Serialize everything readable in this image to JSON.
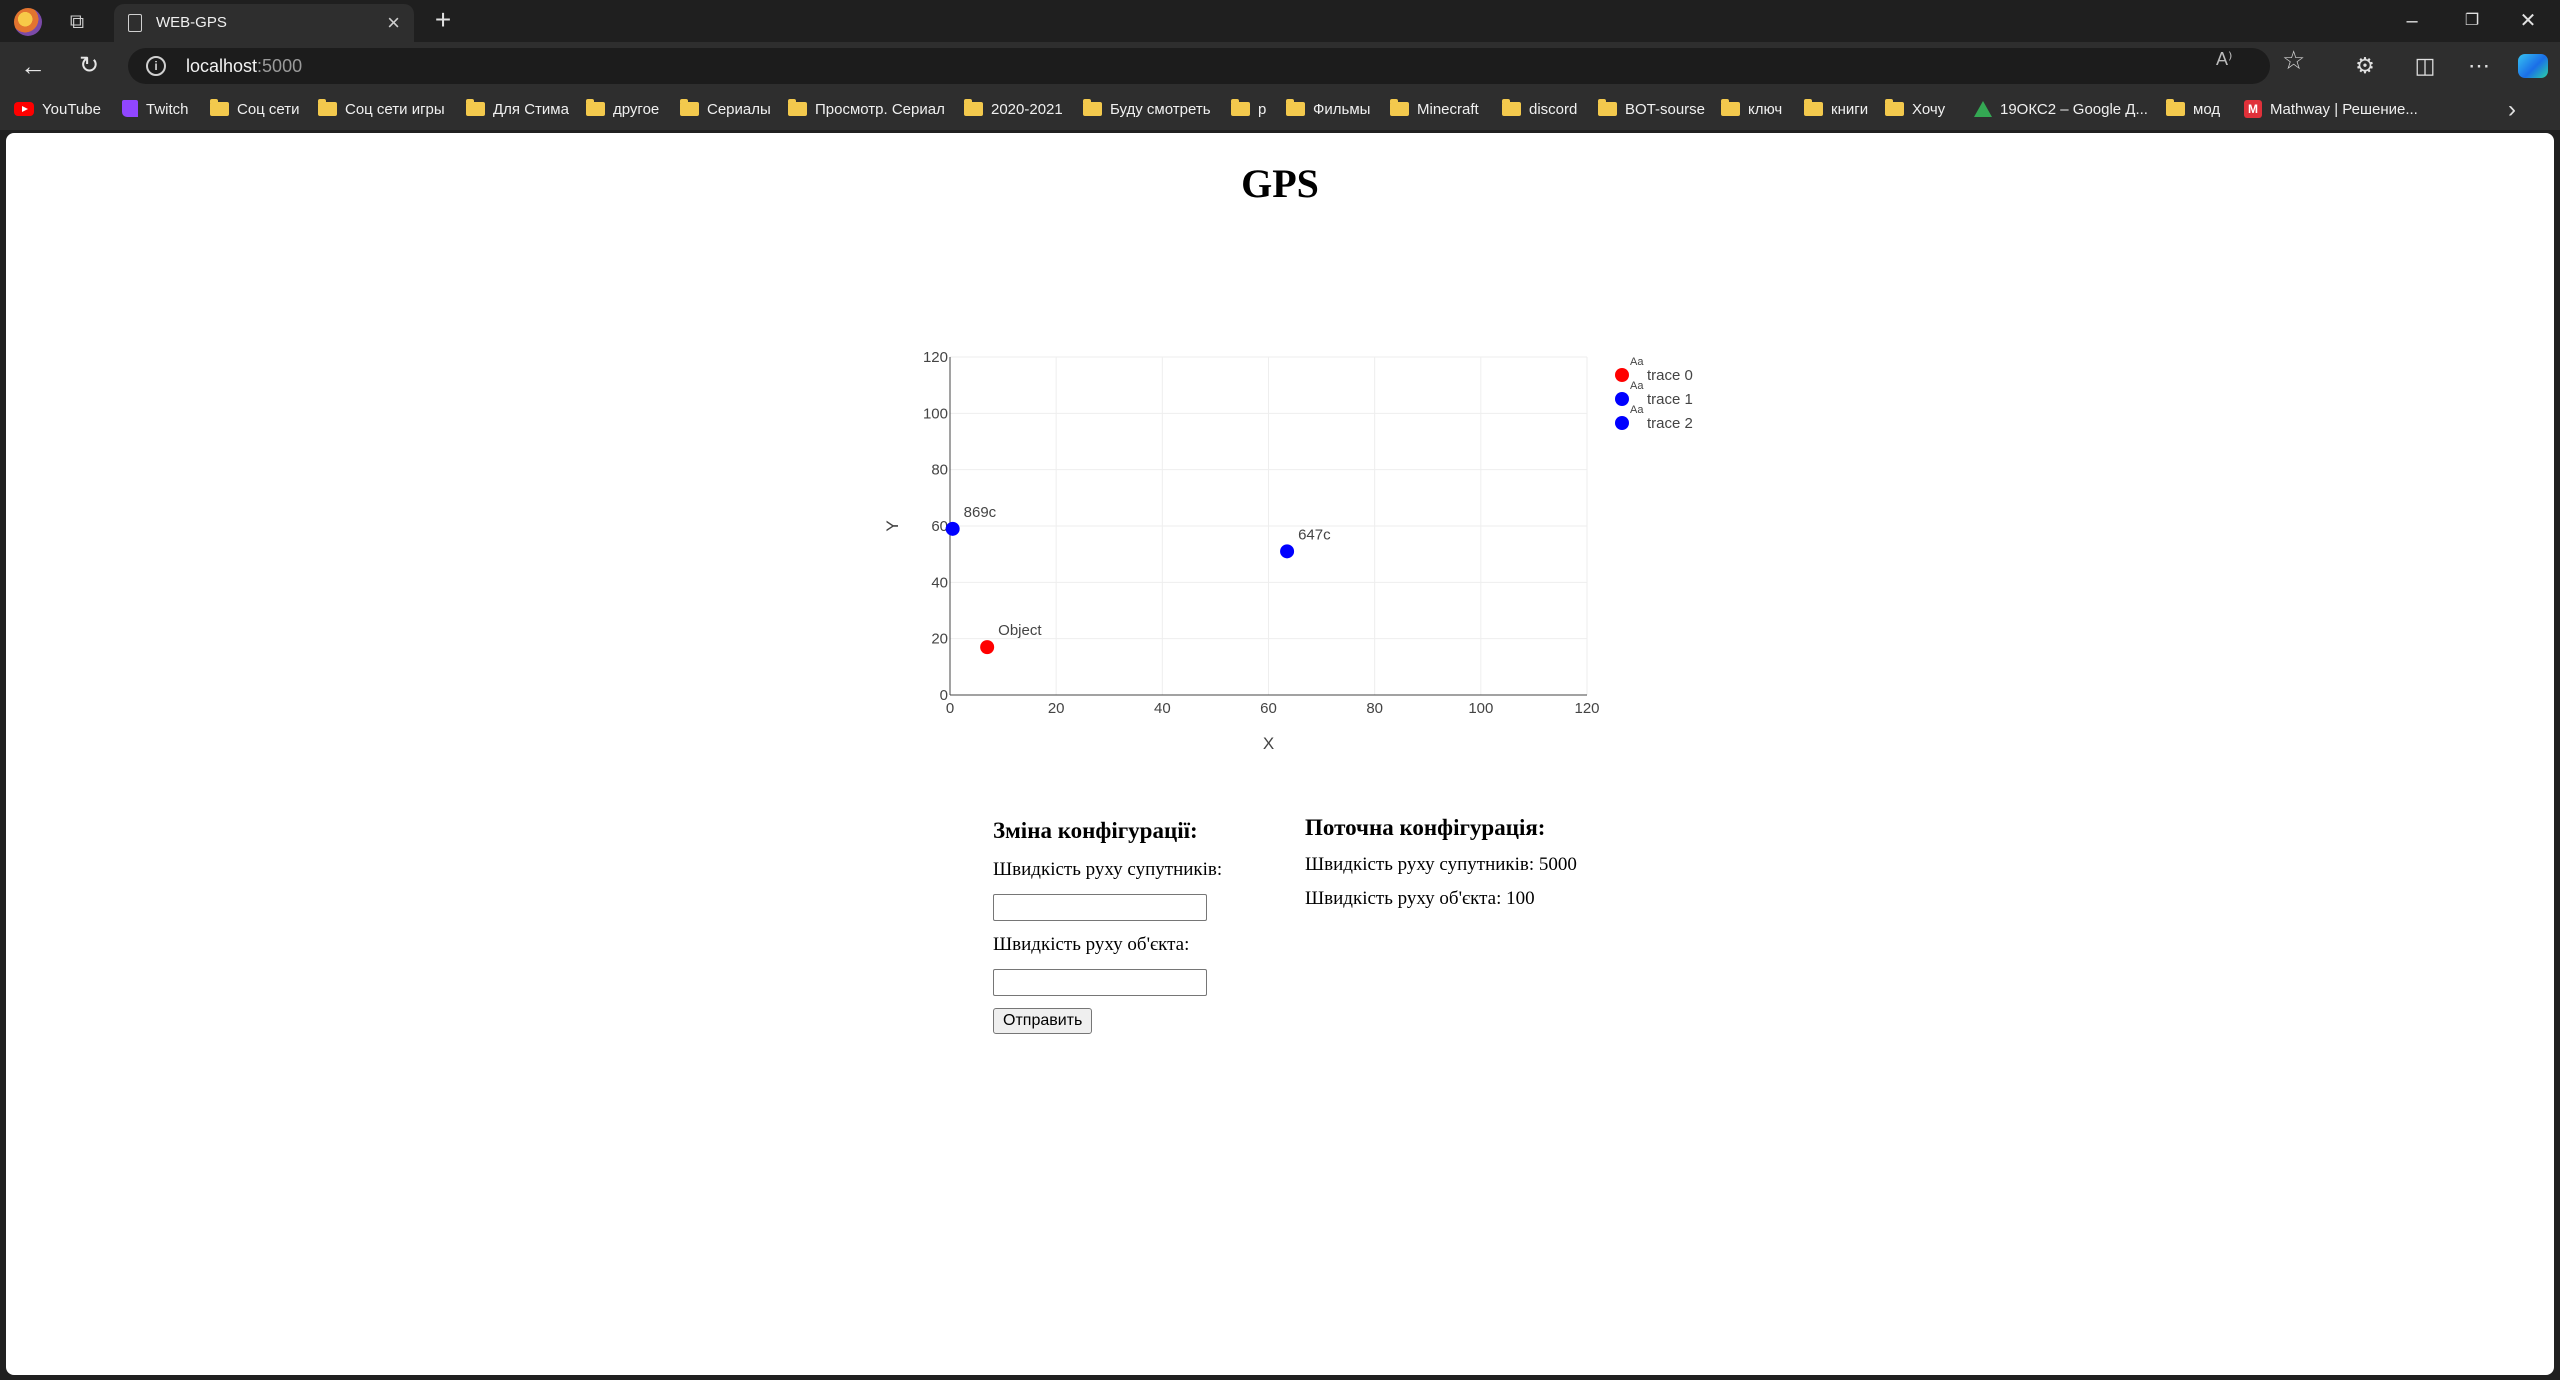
{
  "browser": {
    "tab_title": "WEB-GPS",
    "url_host": "localhost",
    "url_port": ":5000",
    "read_aloud_label": "A⁾",
    "bookmarks": [
      {
        "label": "YouTube",
        "icon": "youtube-icon"
      },
      {
        "label": "Twitch",
        "icon": "twitch-icon"
      },
      {
        "label": "Соц сети",
        "icon": "folder-icon"
      },
      {
        "label": "Соц сети игры",
        "icon": "folder-icon"
      },
      {
        "label": "Для Стима",
        "icon": "folder-icon"
      },
      {
        "label": "другое",
        "icon": "folder-icon"
      },
      {
        "label": "Сериалы",
        "icon": "folder-icon"
      },
      {
        "label": "Просмотр. Сериал",
        "icon": "folder-icon"
      },
      {
        "label": "2020-2021",
        "icon": "folder-icon"
      },
      {
        "label": "Буду смотреть",
        "icon": "folder-icon"
      },
      {
        "label": "р",
        "icon": "folder-icon"
      },
      {
        "label": "Фильмы",
        "icon": "folder-icon"
      },
      {
        "label": "Minecraft",
        "icon": "folder-icon"
      },
      {
        "label": "discord",
        "icon": "folder-icon"
      },
      {
        "label": "BOT-sourse",
        "icon": "folder-icon"
      },
      {
        "label": "ключ",
        "icon": "folder-icon"
      },
      {
        "label": "книги",
        "icon": "folder-icon"
      },
      {
        "label": "Хочу",
        "icon": "folder-icon"
      },
      {
        "label": "19ОКС2 – Google Д...",
        "icon": "google-drive-icon"
      },
      {
        "label": "мод",
        "icon": "folder-icon"
      },
      {
        "label": "Mathway | Решение...",
        "icon": "mathway-icon"
      }
    ]
  },
  "page": {
    "title": "GPS"
  },
  "chart_data": {
    "type": "scatter",
    "xlabel": "X",
    "ylabel": "Y",
    "xlim": [
      0,
      120
    ],
    "ylim": [
      0,
      120
    ],
    "x_ticks": [
      0,
      20,
      40,
      60,
      80,
      100,
      120
    ],
    "y_ticks": [
      0,
      20,
      40,
      60,
      80,
      100,
      120
    ],
    "grid": true,
    "legend_position": "top-right",
    "legend_symbol_text": "Aa",
    "series": [
      {
        "name": "trace 0",
        "color": "#ff0000",
        "points": [
          {
            "x": 7,
            "y": 17,
            "label": "Object"
          }
        ]
      },
      {
        "name": "trace 1",
        "color": "#0000ff",
        "points": [
          {
            "x": 0.5,
            "y": 59,
            "label": "869c"
          }
        ]
      },
      {
        "name": "trace 2",
        "color": "#0000ff",
        "points": [
          {
            "x": 63.5,
            "y": 51,
            "label": "647c"
          }
        ]
      }
    ]
  },
  "config_form": {
    "heading": "Зміна конфігурації:",
    "satellite_speed_label": "Швидкість руху супутників:",
    "satellite_speed_value": "",
    "object_speed_label": "Швидкість руху об'єкта:",
    "object_speed_value": "",
    "submit_label": "Отправить"
  },
  "current_config": {
    "heading": "Поточна конфігурація:",
    "satellite_speed_text": "Швидкість руху супутників: 5000",
    "object_speed_text": "Швидкість руху об'єкта: 100"
  }
}
